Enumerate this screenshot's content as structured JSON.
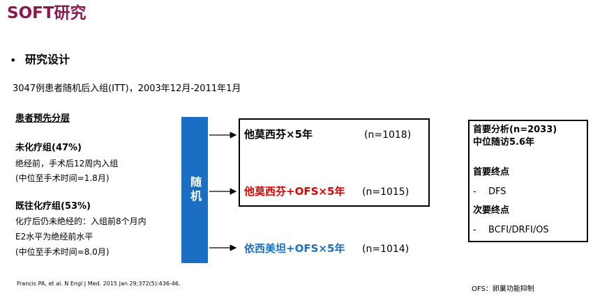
{
  "header": {
    "title": "SOFT研究",
    "section": "研究设计",
    "subtitle": "3047例患者随机后入组(ITT)，2003年12月-2011年1月"
  },
  "stratification": {
    "heading": "患者预先分层",
    "groups": [
      {
        "title": "未化疗组(47%)",
        "lines": [
          "绝经前，手术后12周内入组",
          "(中位至手术时间=1.8月)"
        ]
      },
      {
        "title": "既往化疗组(53%)",
        "lines": [
          "化疗后仍未绝经的：入组前8个月内",
          "E2水平为绝经前水平",
          "(中位至手术时间=8.0月)"
        ]
      }
    ]
  },
  "randomization": "随机",
  "arms": [
    {
      "label": "他莫西芬×5年",
      "n": "(n=1018)"
    },
    {
      "label": "他莫西芬+OFS×5年",
      "n": "(n=1015)"
    },
    {
      "label": "依西美坦+OFS×5年",
      "n": "(n=1014)"
    }
  ],
  "analysis": {
    "primary_analysis": "首要分析(n=2033)",
    "follow_up": "中位随访5.6年",
    "primary_endpoint_heading": "首要终点",
    "primary_endpoint": "DFS",
    "secondary_endpoint_heading": "次要终点",
    "secondary_endpoint": "BCFI/DRFI/OS"
  },
  "footer": {
    "reference": "Francis PA, et al. N Engl J Med. 2015 Jan 29;372(5):436-46.",
    "note": "OFS：卵巢功能抑制"
  }
}
